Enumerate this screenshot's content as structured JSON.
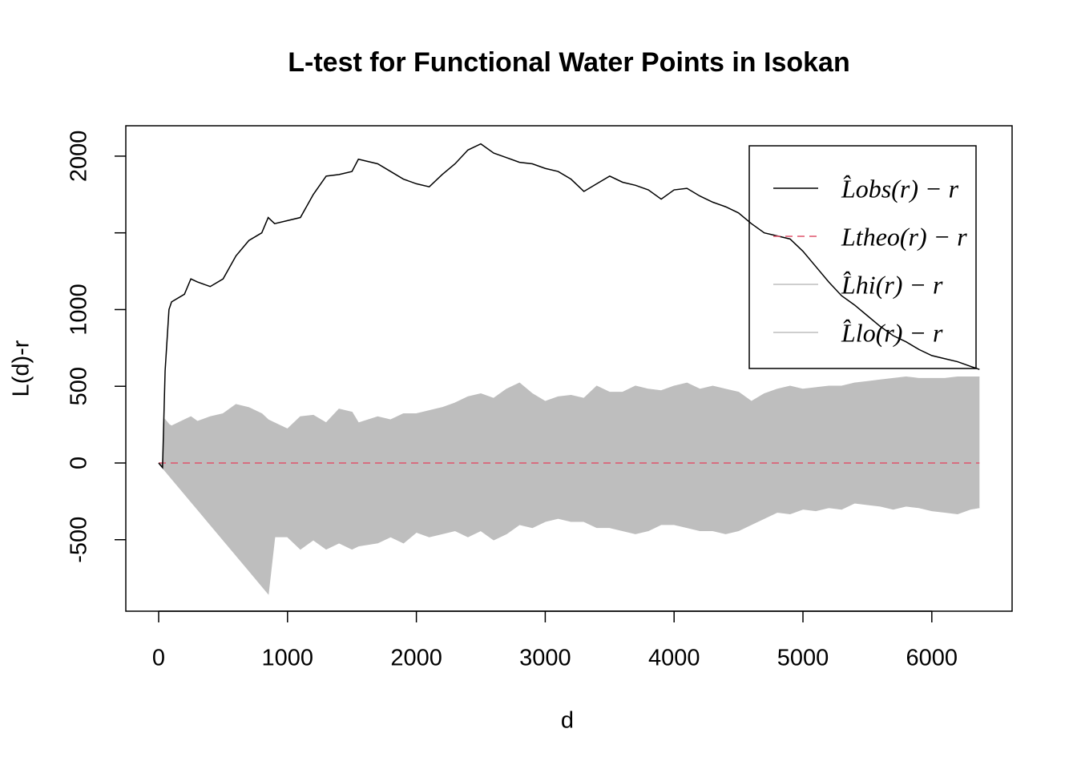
{
  "chart_data": {
    "type": "line",
    "title": "L-test for Functional Water Points in Isokan",
    "x_label": "d",
    "y_label": "L(d)-r",
    "x": [
      0,
      30,
      50,
      80,
      100,
      200,
      250,
      300,
      400,
      500,
      600,
      700,
      800,
      850,
      900,
      1000,
      1100,
      1200,
      1300,
      1400,
      1500,
      1550,
      1700,
      1800,
      1900,
      2000,
      2100,
      2200,
      2300,
      2400,
      2500,
      2600,
      2700,
      2800,
      2900,
      3000,
      3100,
      3200,
      3300,
      3400,
      3500,
      3600,
      3700,
      3800,
      3900,
      4000,
      4100,
      4200,
      4300,
      4400,
      4500,
      4600,
      4700,
      4800,
      4900,
      5000,
      5100,
      5200,
      5300,
      5400,
      5500,
      5600,
      5700,
      5800,
      5900,
      6000,
      6100,
      6200,
      6300,
      6370
    ],
    "series": [
      {
        "name": "L̂obs(r) − r",
        "color": "#000000",
        "dash": false,
        "values": [
          0,
          -30,
          600,
          1000,
          1050,
          1100,
          1200,
          1180,
          1150,
          1200,
          1350,
          1450,
          1500,
          1600,
          1560,
          1580,
          1600,
          1750,
          1870,
          1880,
          1900,
          1980,
          1950,
          1900,
          1850,
          1820,
          1800,
          1880,
          1950,
          2040,
          2080,
          2020,
          1990,
          1960,
          1950,
          1920,
          1900,
          1850,
          1770,
          1820,
          1870,
          1830,
          1810,
          1780,
          1720,
          1780,
          1790,
          1740,
          1700,
          1670,
          1630,
          1560,
          1500,
          1480,
          1460,
          1380,
          1280,
          1180,
          1090,
          1030,
          960,
          890,
          830,
          790,
          740,
          700,
          680,
          660,
          630,
          610
        ]
      },
      {
        "name": "Ltheo(r) − r",
        "color": "#DF536B",
        "dash": true,
        "values": [
          0,
          0,
          0,
          0,
          0,
          0,
          0,
          0,
          0,
          0,
          0,
          0,
          0,
          0,
          0,
          0,
          0,
          0,
          0,
          0,
          0,
          0,
          0,
          0,
          0,
          0,
          0,
          0,
          0,
          0,
          0,
          0,
          0,
          0,
          0,
          0,
          0,
          0,
          0,
          0,
          0,
          0,
          0,
          0,
          0,
          0,
          0,
          0,
          0,
          0,
          0,
          0,
          0,
          0,
          0,
          0,
          0,
          0,
          0,
          0,
          0,
          0,
          0,
          0,
          0,
          0,
          0,
          0,
          0,
          0
        ]
      },
      {
        "name": "L̂hi(r) − r",
        "color": "#BEBEBE",
        "dash": false,
        "values": [
          0,
          0,
          280,
          250,
          240,
          280,
          300,
          270,
          300,
          320,
          380,
          360,
          320,
          280,
          260,
          220,
          300,
          310,
          260,
          350,
          330,
          260,
          300,
          280,
          320,
          320,
          340,
          360,
          390,
          430,
          450,
          420,
          480,
          520,
          450,
          400,
          430,
          440,
          420,
          500,
          460,
          460,
          500,
          480,
          470,
          500,
          520,
          480,
          500,
          480,
          460,
          400,
          450,
          480,
          500,
          480,
          490,
          500,
          500,
          520,
          530,
          540,
          550,
          560,
          550,
          550,
          550,
          560,
          560,
          560
        ]
      },
      {
        "name": "L̂lo(r) − r",
        "color": "#BEBEBE",
        "dash": false,
        "values": [
          0,
          -30,
          -50,
          -80,
          -100,
          -200,
          -250,
          -300,
          -400,
          -500,
          -600,
          -700,
          -800,
          -850,
          -480,
          -480,
          -560,
          -500,
          -560,
          -520,
          -560,
          -540,
          -520,
          -480,
          -520,
          -450,
          -480,
          -460,
          -440,
          -480,
          -440,
          -500,
          -460,
          -400,
          -420,
          -380,
          -360,
          -380,
          -380,
          -420,
          -420,
          -440,
          -460,
          -440,
          -400,
          -400,
          -420,
          -440,
          -440,
          -460,
          -440,
          -400,
          -360,
          -320,
          -330,
          -300,
          -310,
          -290,
          -300,
          -260,
          -270,
          -280,
          -300,
          -280,
          -290,
          -310,
          -320,
          -330,
          -300,
          -290
        ]
      }
    ],
    "shade": true,
    "xlim": [
      -255,
      6623
    ],
    "ylim": [
      -966,
      2198
    ],
    "xticks": [
      0,
      1000,
      2000,
      3000,
      4000,
      5000,
      6000
    ],
    "yticks": [
      -500,
      0,
      500,
      1000,
      {
        "value": 1500,
        "label": null
      },
      2000
    ],
    "grid": false,
    "legend": "topright"
  }
}
